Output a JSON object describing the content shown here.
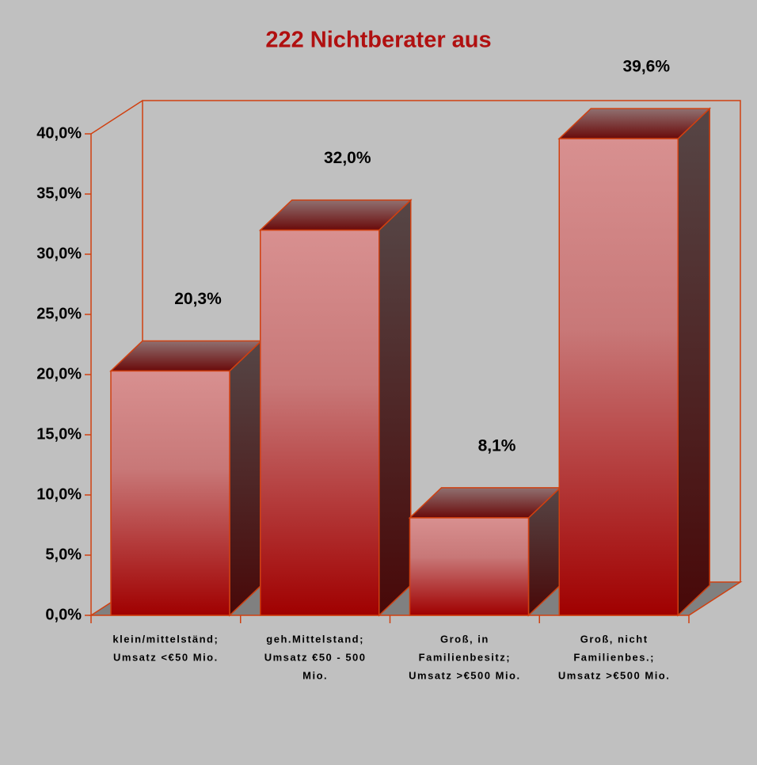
{
  "chart_data": {
    "type": "bar3d",
    "title": "222 Nichtberater aus",
    "categories": [
      [
        "klein/mittelständ;",
        "Umsatz <€50 Mio."
      ],
      [
        "geh.Mittelstand;",
        "Umsatz €50 - 500",
        "Mio."
      ],
      [
        "Groß, in",
        "Familienbesitz;",
        "Umsatz >€500 Mio."
      ],
      [
        "Groß, nicht",
        "Familienbes.;",
        "Umsatz >€500 Mio."
      ]
    ],
    "values": [
      20.3,
      32.0,
      8.1,
      39.6
    ],
    "value_labels": [
      "20,3%",
      "32,0%",
      "8,1%",
      "39,6%"
    ],
    "color": "#a00000",
    "ylim": [
      0,
      40
    ],
    "yticks": [
      {
        "value": 0,
        "label": "0,0%"
      },
      {
        "value": 5,
        "label": "5,0%"
      },
      {
        "value": 10,
        "label": "10,0%"
      },
      {
        "value": 15,
        "label": "15,0%"
      },
      {
        "value": 20,
        "label": "20,0%"
      },
      {
        "value": 25,
        "label": "25,0%"
      },
      {
        "value": 30,
        "label": "30,0%"
      },
      {
        "value": 35,
        "label": "35,0%"
      },
      {
        "value": 40,
        "label": "40,0%"
      }
    ]
  }
}
